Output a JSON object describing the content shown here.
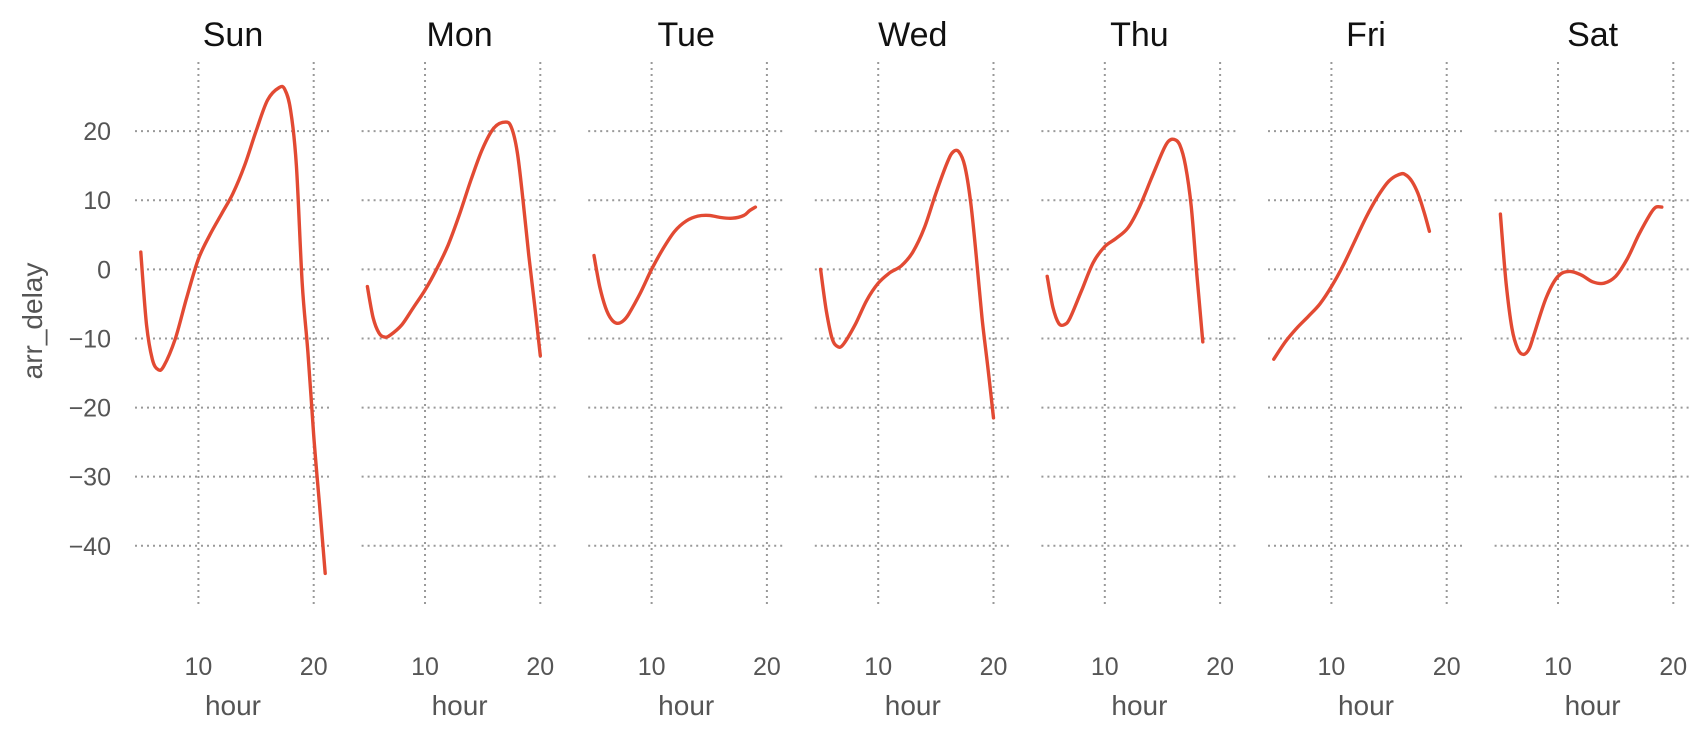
{
  "chart_data": {
    "type": "line",
    "facet_by": "day",
    "xlabel": "hour",
    "ylabel": "arr_delay",
    "xlim": [
      4.5,
      21.5
    ],
    "ylim": [
      -49,
      30
    ],
    "x_ticks": [
      10,
      20
    ],
    "y_ticks": [
      20,
      10,
      0,
      -10,
      -20,
      -30,
      -40
    ],
    "grid": true,
    "line_color": "#e24a33",
    "panels": [
      {
        "title": "Sun",
        "points": [
          [
            5,
            2.5
          ],
          [
            5.5,
            -8
          ],
          [
            6,
            -13
          ],
          [
            6.5,
            -14.5
          ],
          [
            7,
            -14
          ],
          [
            8,
            -10
          ],
          [
            9,
            -4
          ],
          [
            10,
            1.5
          ],
          [
            11,
            5
          ],
          [
            12,
            8
          ],
          [
            13,
            11
          ],
          [
            14,
            15
          ],
          [
            15,
            20
          ],
          [
            16,
            24.5
          ],
          [
            17,
            26.3
          ],
          [
            17.5,
            26
          ],
          [
            18,
            23
          ],
          [
            18.5,
            15
          ],
          [
            19,
            -2
          ],
          [
            19.5,
            -12
          ],
          [
            20,
            -24
          ],
          [
            20.5,
            -34
          ],
          [
            21,
            -44
          ]
        ]
      },
      {
        "title": "Mon",
        "points": [
          [
            5,
            -2.5
          ],
          [
            5.5,
            -7
          ],
          [
            6,
            -9.2
          ],
          [
            6.5,
            -9.8
          ],
          [
            7,
            -9.5
          ],
          [
            8,
            -8
          ],
          [
            9,
            -5.5
          ],
          [
            10,
            -3
          ],
          [
            11,
            0
          ],
          [
            12,
            3.5
          ],
          [
            13,
            8
          ],
          [
            14,
            13
          ],
          [
            15,
            17.5
          ],
          [
            16,
            20.5
          ],
          [
            17,
            21.3
          ],
          [
            17.5,
            20.5
          ],
          [
            18,
            17
          ],
          [
            18.5,
            10
          ],
          [
            19,
            2
          ],
          [
            19.5,
            -5
          ],
          [
            20,
            -12.5
          ]
        ]
      },
      {
        "title": "Tue",
        "points": [
          [
            5,
            2
          ],
          [
            5.5,
            -2.5
          ],
          [
            6,
            -5.5
          ],
          [
            6.5,
            -7.2
          ],
          [
            7,
            -7.8
          ],
          [
            7.5,
            -7.5
          ],
          [
            8,
            -6.5
          ],
          [
            9,
            -3.5
          ],
          [
            10,
            0
          ],
          [
            11,
            3
          ],
          [
            12,
            5.5
          ],
          [
            13,
            7
          ],
          [
            14,
            7.7
          ],
          [
            15,
            7.8
          ],
          [
            16,
            7.5
          ],
          [
            17,
            7.4
          ],
          [
            18,
            7.8
          ],
          [
            18.5,
            8.5
          ],
          [
            19,
            9
          ]
        ]
      },
      {
        "title": "Wed",
        "points": [
          [
            5,
            0
          ],
          [
            5.5,
            -6
          ],
          [
            6,
            -10
          ],
          [
            6.5,
            -11.2
          ],
          [
            7,
            -10.8
          ],
          [
            8,
            -8
          ],
          [
            9,
            -4.5
          ],
          [
            10,
            -2
          ],
          [
            11,
            -0.5
          ],
          [
            12,
            0.5
          ],
          [
            13,
            2.5
          ],
          [
            14,
            6
          ],
          [
            15,
            11
          ],
          [
            16,
            15.5
          ],
          [
            16.5,
            17
          ],
          [
            17,
            17
          ],
          [
            17.5,
            15
          ],
          [
            18,
            10
          ],
          [
            18.5,
            2
          ],
          [
            19,
            -7
          ],
          [
            19.5,
            -14
          ],
          [
            20,
            -21.5
          ]
        ]
      },
      {
        "title": "Thu",
        "points": [
          [
            5,
            -1
          ],
          [
            5.5,
            -5.5
          ],
          [
            6,
            -7.8
          ],
          [
            6.5,
            -8
          ],
          [
            7,
            -7
          ],
          [
            8,
            -3
          ],
          [
            9,
            1
          ],
          [
            10,
            3.3
          ],
          [
            11,
            4.5
          ],
          [
            12,
            6
          ],
          [
            13,
            9
          ],
          [
            14,
            13
          ],
          [
            15,
            17
          ],
          [
            15.5,
            18.5
          ],
          [
            16,
            18.8
          ],
          [
            16.5,
            18
          ],
          [
            17,
            15
          ],
          [
            17.5,
            9
          ],
          [
            18,
            -1
          ],
          [
            18.5,
            -10.5
          ]
        ]
      },
      {
        "title": "Fri",
        "points": [
          [
            5,
            -13
          ],
          [
            6,
            -10.5
          ],
          [
            7,
            -8.5
          ],
          [
            8,
            -6.8
          ],
          [
            9,
            -5
          ],
          [
            10,
            -2.5
          ],
          [
            11,
            0.5
          ],
          [
            12,
            4
          ],
          [
            13,
            7.5
          ],
          [
            14,
            10.5
          ],
          [
            15,
            12.8
          ],
          [
            16,
            13.8
          ],
          [
            16.5,
            13.6
          ],
          [
            17,
            12.7
          ],
          [
            17.5,
            11
          ],
          [
            18,
            8.5
          ],
          [
            18.5,
            5.5
          ]
        ]
      },
      {
        "title": "Sat",
        "points": [
          [
            5,
            8
          ],
          [
            5.5,
            -2
          ],
          [
            6,
            -8.5
          ],
          [
            6.5,
            -11.5
          ],
          [
            7,
            -12.3
          ],
          [
            7.5,
            -11.5
          ],
          [
            8,
            -9
          ],
          [
            9,
            -4
          ],
          [
            10,
            -1
          ],
          [
            11,
            -0.3
          ],
          [
            12,
            -0.8
          ],
          [
            13,
            -1.8
          ],
          [
            14,
            -2
          ],
          [
            15,
            -1
          ],
          [
            16,
            1.5
          ],
          [
            17,
            5
          ],
          [
            18,
            8
          ],
          [
            18.5,
            9
          ],
          [
            19,
            9
          ]
        ]
      }
    ]
  }
}
